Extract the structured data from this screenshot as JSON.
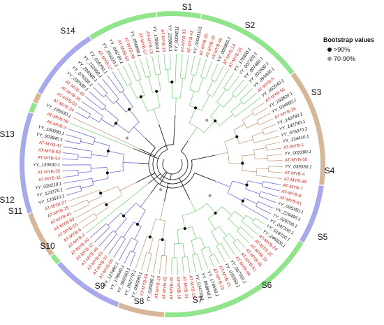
{
  "legend": {
    "title": "Bootstrap values",
    "high_label": ">90%",
    "mid_label": "70-90%",
    "high_color": "#111111",
    "mid_color": "#9a9a9a"
  },
  "colors": {
    "green": "#8fe48c",
    "blue": "#a8a8ec",
    "tan": "#d7b79a",
    "at_label": "#d62a1e",
    "yy_label": "#111111",
    "line_green": "#7fd37b",
    "line_blue": "#6b6bd6",
    "line_tan": "#c49f7f",
    "line_dark": "#222222"
  },
  "subgroups": [
    {
      "label": "S1",
      "color": "green"
    },
    {
      "label": "S2",
      "color": "green"
    },
    {
      "label": "S3",
      "color": "tan"
    },
    {
      "label": "S4",
      "color": "blue"
    },
    {
      "label": "S5",
      "color": "green"
    },
    {
      "label": "S6",
      "color": "tan"
    },
    {
      "label": "S7",
      "color": "blue"
    },
    {
      "label": "S8",
      "color": "green"
    },
    {
      "label": "S9",
      "color": "tan"
    },
    {
      "label": "S10",
      "color": "blue"
    },
    {
      "label": "S11",
      "color": "green"
    },
    {
      "label": "S12",
      "color": "tan"
    },
    {
      "label": "S13",
      "color": "blue"
    },
    {
      "label": "S14",
      "color": "green"
    }
  ],
  "leaves": [
    {
      "label": "YY_0005011",
      "kind": "yy"
    },
    {
      "label": "AT-MYB-33",
      "kind": "at"
    },
    {
      "label": "AT-MYB-43",
      "kind": "at"
    },
    {
      "label": "YY_00041101",
      "kind": "yy"
    },
    {
      "label": "AT-MYB-20",
      "kind": "at"
    },
    {
      "label": "AT-MYB-19",
      "kind": "at"
    },
    {
      "label": "AT-MYB-46",
      "kind": "at"
    },
    {
      "label": "YY_005860.1",
      "kind": "yy"
    },
    {
      "label": "AT-MYB-14",
      "kind": "at"
    },
    {
      "label": "AT-MYB-26",
      "kind": "at"
    },
    {
      "label": "YY_178300.1",
      "kind": "yy"
    },
    {
      "label": "YY_007320.1",
      "kind": "yy"
    },
    {
      "label": "YY_007480.1",
      "kind": "yy"
    },
    {
      "label": "YY_032550.1",
      "kind": "yy"
    },
    {
      "label": "YY_093400.1",
      "kind": "yy"
    },
    {
      "label": "AT-MYB-5",
      "kind": "at"
    },
    {
      "label": "YY_052040.1",
      "kind": "yy"
    },
    {
      "label": "AT-MYB-56",
      "kind": "at"
    },
    {
      "label": "YY_156820.1",
      "kind": "yy"
    },
    {
      "label": "YY_034980.1",
      "kind": "yy"
    },
    {
      "label": "AT-MYB-29",
      "kind": "at"
    },
    {
      "label": "YY_140780.1",
      "kind": "yy"
    },
    {
      "label": "YY_192740.1",
      "kind": "yy"
    },
    {
      "label": "YY_076070.1",
      "kind": "yy"
    },
    {
      "label": "YY_134410.1",
      "kind": "yy"
    },
    {
      "label": "AT-MYB-1",
      "kind": "at"
    },
    {
      "label": "YY_002280.1",
      "kind": "yy"
    },
    {
      "label": "AT-MYB-50",
      "kind": "at"
    },
    {
      "label": "YY_039350.1",
      "kind": "yy"
    },
    {
      "label": "AT-MYB-4",
      "kind": "at"
    },
    {
      "label": "AT-MYB-39",
      "kind": "at"
    },
    {
      "label": "AT-MYB-7",
      "kind": "at"
    },
    {
      "label": "AT-MYB-8",
      "kind": "at"
    },
    {
      "label": "AT-MYB-61",
      "kind": "at"
    },
    {
      "label": "YY_095350.1",
      "kind": "yy"
    },
    {
      "label": "YY_229490.1",
      "kind": "yy"
    },
    {
      "label": "YY_026700.1",
      "kind": "yy"
    },
    {
      "label": "YY_047330.1",
      "kind": "yy"
    },
    {
      "label": "YY_018710.1",
      "kind": "yy"
    },
    {
      "label": "YY_246920.1",
      "kind": "yy"
    },
    {
      "label": "AT-MYB-24",
      "kind": "at"
    },
    {
      "label": "AT-MYB-22",
      "kind": "at"
    },
    {
      "label": "AT-MYB-32",
      "kind": "at"
    },
    {
      "label": "AT-MYB-45",
      "kind": "at"
    },
    {
      "label": "AT-MYB-51",
      "kind": "at"
    },
    {
      "label": "AT-MYB-44",
      "kind": "at"
    },
    {
      "label": "YY_067350.1",
      "kind": "yy"
    },
    {
      "label": "YY_079350.1",
      "kind": "yy"
    },
    {
      "label": "AT-MYB-21",
      "kind": "at"
    },
    {
      "label": "AT-MYB-23",
      "kind": "at"
    },
    {
      "label": "YY_174550.1",
      "kind": "yy"
    },
    {
      "label": "YY_098850.1",
      "kind": "yy"
    },
    {
      "label": "YY_014730.1",
      "kind": "yy"
    },
    {
      "label": "AT-MYB-16",
      "kind": "at"
    },
    {
      "label": "AT-MYB-31",
      "kind": "at"
    },
    {
      "label": "AT-MYB-10",
      "kind": "at"
    },
    {
      "label": "AT-MYB-30",
      "kind": "at"
    },
    {
      "label": "AT-MYB-42",
      "kind": "at"
    },
    {
      "label": "AT-MYB-18",
      "kind": "at"
    },
    {
      "label": "YY_020890.1",
      "kind": "yy"
    },
    {
      "label": "AT-MYB-58",
      "kind": "at"
    },
    {
      "label": "YY_090390.1",
      "kind": "yy"
    },
    {
      "label": "YY_052770.1",
      "kind": "yy"
    },
    {
      "label": "YY_066560.1",
      "kind": "yy"
    },
    {
      "label": "YY_178640.1",
      "kind": "yy"
    },
    {
      "label": "YY_127480.1",
      "kind": "yy"
    },
    {
      "label": "AT-MYB-65",
      "kind": "at"
    },
    {
      "label": "AT-MYB-37",
      "kind": "at"
    },
    {
      "label": "AT-MYB-63",
      "kind": "at"
    },
    {
      "label": "AT-MYB-49",
      "kind": "at"
    },
    {
      "label": "AT-MYB-12",
      "kind": "at"
    },
    {
      "label": "AT-MYB-40",
      "kind": "at"
    },
    {
      "label": "AT-MYB-2",
      "kind": "at"
    },
    {
      "label": "AT-MYB-6",
      "kind": "at"
    },
    {
      "label": "AT-MYB-55",
      "kind": "at"
    },
    {
      "label": "AT-MYB-59",
      "kind": "at"
    },
    {
      "label": "AT-MYB-41",
      "kind": "at"
    },
    {
      "label": "AT-MYB-25",
      "kind": "at"
    },
    {
      "label": "AT-MYB-27",
      "kind": "at"
    },
    {
      "label": "YY_120510.1",
      "kind": "yy"
    },
    {
      "label": "YY_123770.1",
      "kind": "yy"
    },
    {
      "label": "YY_020210.1",
      "kind": "yy"
    },
    {
      "label": "AT-MYB-11",
      "kind": "at"
    },
    {
      "label": "AT-MYB-35",
      "kind": "at"
    },
    {
      "label": "YY_133530.1",
      "kind": "yy"
    },
    {
      "label": "AT-MYB-54",
      "kind": "at"
    },
    {
      "label": "AT-MYB-53",
      "kind": "at"
    },
    {
      "label": "AT-MYB-47",
      "kind": "at"
    },
    {
      "label": "YY_003840.1",
      "kind": "yy"
    },
    {
      "label": "YY_180090.1",
      "kind": "yy"
    },
    {
      "label": "AT-MYB-3",
      "kind": "at"
    },
    {
      "label": "AT-MYB-58",
      "kind": "at"
    },
    {
      "label": "YY_195630.1",
      "kind": "yy"
    },
    {
      "label": "AT-MYB-34",
      "kind": "at"
    },
    {
      "label": "AT-MYB-52",
      "kind": "at"
    },
    {
      "label": "AT-MYB-36",
      "kind": "at"
    },
    {
      "label": "AT-MYB-48",
      "kind": "at"
    },
    {
      "label": "YY_030590.1",
      "kind": "yy"
    },
    {
      "label": "YY_075330.1",
      "kind": "yy"
    },
    {
      "label": "YY_204580.1",
      "kind": "yy"
    },
    {
      "label": "YY_232450.1",
      "kind": "yy"
    },
    {
      "label": "YY_016750.1",
      "kind": "yy"
    },
    {
      "label": "AT-MYB-17",
      "kind": "at"
    },
    {
      "label": "YY_163220.1",
      "kind": "yy"
    },
    {
      "label": "YY_046700.1",
      "kind": "yy"
    },
    {
      "label": "AT-MYB-60",
      "kind": "at"
    },
    {
      "label": "AT-MYB-38",
      "kind": "at"
    },
    {
      "label": "YY_096890.1",
      "kind": "yy"
    },
    {
      "label": "AT-MYB-57",
      "kind": "at"
    },
    {
      "label": "AT-MYB-13",
      "kind": "at"
    },
    {
      "label": "YY_178000.1",
      "kind": "yy"
    },
    {
      "label": "AT-MYB-15",
      "kind": "at"
    },
    {
      "label": "YY_215800.1",
      "kind": "yy"
    }
  ]
}
